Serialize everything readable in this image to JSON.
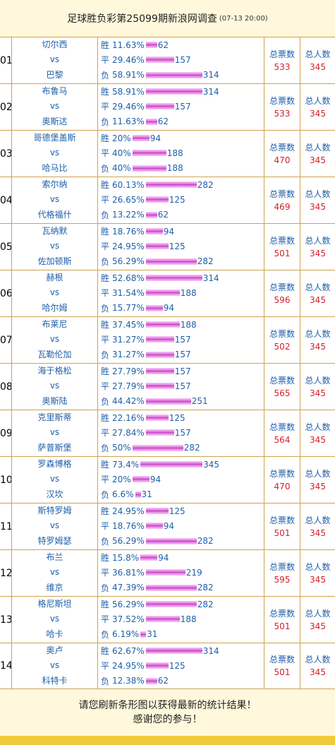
{
  "header": {
    "title": "足球胜负彩第25099期新浪网调查",
    "time": "(07-13 20:00)"
  },
  "labels": {
    "total_votes": "总票数",
    "total_people": "总人数",
    "vs": "vs"
  },
  "colors": {
    "bar": "#c040c0",
    "team_text": "#1f5fa8",
    "count_text": "#d4202a",
    "border": "#cfa250",
    "background": "#fff8dc"
  },
  "matches": [
    {
      "num": "01",
      "home": "切尔西",
      "away": "巴黎",
      "stats": [
        {
          "label": "胜",
          "pct": "11.63%",
          "count": 62
        },
        {
          "label": "平",
          "pct": "29.46%",
          "count": 157
        },
        {
          "label": "负",
          "pct": "58.91%",
          "count": 314
        }
      ],
      "total": "533",
      "people": "345"
    },
    {
      "num": "02",
      "home": "布鲁马",
      "away": "奥斯达",
      "stats": [
        {
          "label": "胜",
          "pct": "58.91%",
          "count": 314
        },
        {
          "label": "平",
          "pct": "29.46%",
          "count": 157
        },
        {
          "label": "负",
          "pct": "11.63%",
          "count": 62
        }
      ],
      "total": "533",
      "people": "345"
    },
    {
      "num": "03",
      "home": "哥德堡盖斯",
      "away": "哈马比",
      "stats": [
        {
          "label": "胜",
          "pct": "20%",
          "count": 94
        },
        {
          "label": "平",
          "pct": "40%",
          "count": 188
        },
        {
          "label": "负",
          "pct": "40%",
          "count": 188
        }
      ],
      "total": "470",
      "people": "345"
    },
    {
      "num": "04",
      "home": "索尔纳",
      "away": "代格福什",
      "stats": [
        {
          "label": "胜",
          "pct": "60.13%",
          "count": 282
        },
        {
          "label": "平",
          "pct": "26.65%",
          "count": 125
        },
        {
          "label": "负",
          "pct": "13.22%",
          "count": 62
        }
      ],
      "total": "469",
      "people": "345"
    },
    {
      "num": "05",
      "home": "瓦纳默",
      "away": "佐加顿斯",
      "stats": [
        {
          "label": "胜",
          "pct": "18.76%",
          "count": 94
        },
        {
          "label": "平",
          "pct": "24.95%",
          "count": 125
        },
        {
          "label": "负",
          "pct": "56.29%",
          "count": 282
        }
      ],
      "total": "501",
      "people": "345"
    },
    {
      "num": "06",
      "home": "赫根",
      "away": "哈尔姆",
      "stats": [
        {
          "label": "胜",
          "pct": "52.68%",
          "count": 314
        },
        {
          "label": "平",
          "pct": "31.54%",
          "count": 188
        },
        {
          "label": "负",
          "pct": "15.77%",
          "count": 94
        }
      ],
      "total": "596",
      "people": "345"
    },
    {
      "num": "07",
      "home": "布莱尼",
      "away": "瓦勒伦加",
      "stats": [
        {
          "label": "胜",
          "pct": "37.45%",
          "count": 188
        },
        {
          "label": "平",
          "pct": "31.27%",
          "count": 157
        },
        {
          "label": "负",
          "pct": "31.27%",
          "count": 157
        }
      ],
      "total": "502",
      "people": "345"
    },
    {
      "num": "08",
      "home": "海于格松",
      "away": "奥斯陆",
      "stats": [
        {
          "label": "胜",
          "pct": "27.79%",
          "count": 157
        },
        {
          "label": "平",
          "pct": "27.79%",
          "count": 157
        },
        {
          "label": "负",
          "pct": "44.42%",
          "count": 251
        }
      ],
      "total": "565",
      "people": "345"
    },
    {
      "num": "09",
      "home": "克里斯蒂",
      "away": "萨普斯堡",
      "stats": [
        {
          "label": "胜",
          "pct": "22.16%",
          "count": 125
        },
        {
          "label": "平",
          "pct": "27.84%",
          "count": 157
        },
        {
          "label": "负",
          "pct": "50%",
          "count": 282
        }
      ],
      "total": "564",
      "people": "345"
    },
    {
      "num": "10",
      "home": "罗森博格",
      "away": "汉坎",
      "stats": [
        {
          "label": "胜",
          "pct": "73.4%",
          "count": 345
        },
        {
          "label": "平",
          "pct": "20%",
          "count": 94
        },
        {
          "label": "负",
          "pct": "6.6%",
          "count": 31
        }
      ],
      "total": "470",
      "people": "345"
    },
    {
      "num": "11",
      "home": "斯特罗姆",
      "away": "特罗姆瑟",
      "stats": [
        {
          "label": "胜",
          "pct": "24.95%",
          "count": 125
        },
        {
          "label": "平",
          "pct": "18.76%",
          "count": 94
        },
        {
          "label": "负",
          "pct": "56.29%",
          "count": 282
        }
      ],
      "total": "501",
      "people": "345"
    },
    {
      "num": "12",
      "home": "布兰",
      "away": "维京",
      "stats": [
        {
          "label": "胜",
          "pct": "15.8%",
          "count": 94
        },
        {
          "label": "平",
          "pct": "36.81%",
          "count": 219
        },
        {
          "label": "负",
          "pct": "47.39%",
          "count": 282
        }
      ],
      "total": "595",
      "people": "345"
    },
    {
      "num": "13",
      "home": "格尼斯坦",
      "away": "哈卡",
      "stats": [
        {
          "label": "胜",
          "pct": "56.29%",
          "count": 282
        },
        {
          "label": "平",
          "pct": "37.52%",
          "count": 188
        },
        {
          "label": "负",
          "pct": "6.19%",
          "count": 31
        }
      ],
      "total": "501",
      "people": "345"
    },
    {
      "num": "14",
      "home": "奥卢",
      "away": "科特卡",
      "stats": [
        {
          "label": "胜",
          "pct": "62.67%",
          "count": 314
        },
        {
          "label": "平",
          "pct": "24.95%",
          "count": 125
        },
        {
          "label": "负",
          "pct": "12.38%",
          "count": 62
        }
      ],
      "total": "501",
      "people": "345"
    }
  ],
  "footer": {
    "line1": "请您刷新条形图以获得最新的统计结果！",
    "line2": "感谢您的参与！"
  }
}
